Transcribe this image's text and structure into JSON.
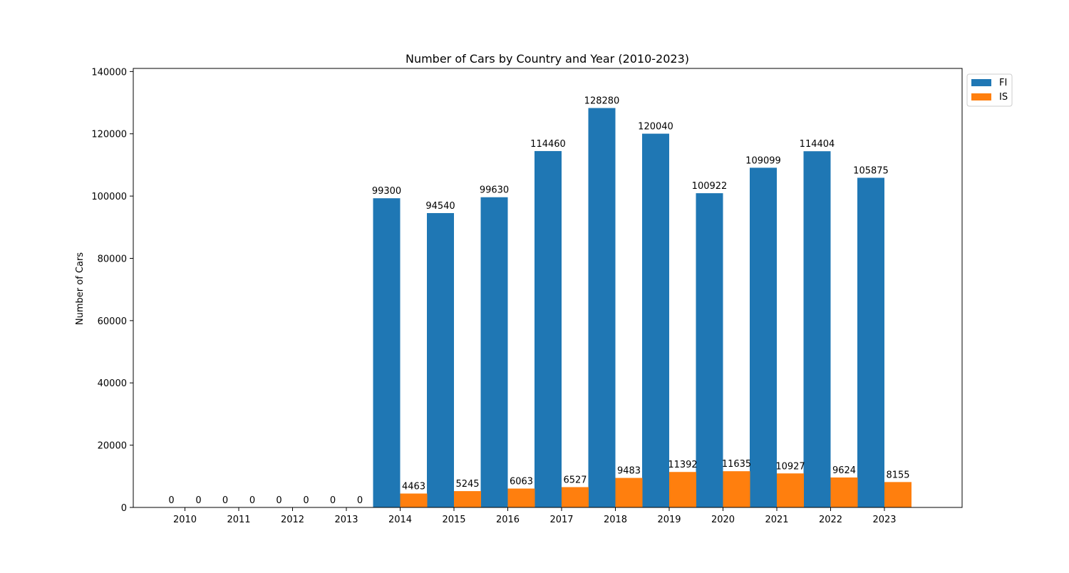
{
  "chart_data": {
    "type": "bar",
    "title": "Number of Cars by Country and Year (2010-2023)",
    "xlabel": "",
    "ylabel": "Number of Cars",
    "categories": [
      "2010",
      "2011",
      "2012",
      "2013",
      "2014",
      "2015",
      "2016",
      "2017",
      "2018",
      "2019",
      "2020",
      "2021",
      "2022",
      "2023"
    ],
    "series": [
      {
        "name": "FI",
        "color": "#1f77b4",
        "values": [
          0,
          0,
          0,
          0,
          99300,
          94540,
          99630,
          114460,
          128280,
          120040,
          100922,
          109099,
          114404,
          105875
        ]
      },
      {
        "name": "IS",
        "color": "#ff7f0e",
        "values": [
          0,
          0,
          0,
          0,
          4463,
          5245,
          6063,
          6527,
          9483,
          11392,
          11635,
          10927,
          9624,
          8155
        ]
      }
    ],
    "ylim": [
      0,
      140000
    ],
    "yticks": [
      0,
      20000,
      40000,
      60000,
      80000,
      100000,
      120000,
      140000
    ],
    "grid": false,
    "legend_position": "top-right outside"
  }
}
